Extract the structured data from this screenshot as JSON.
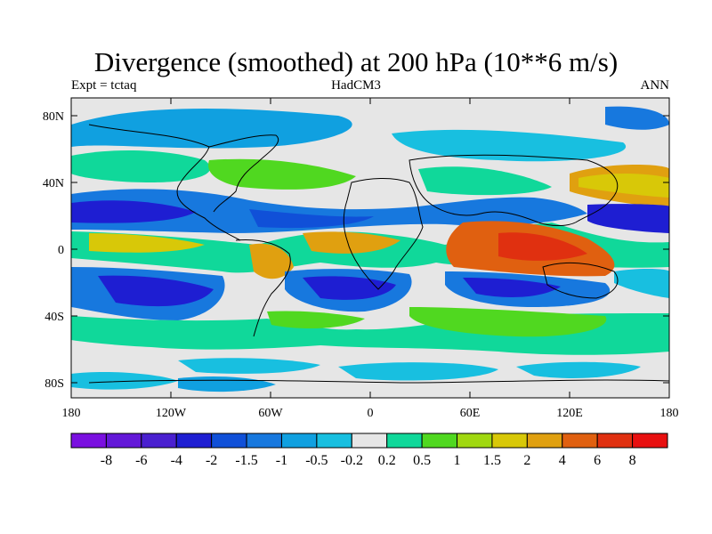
{
  "title": "Divergence (smoothed) at 200 hPa (10**6 m/s)",
  "left_label": "Expt = tctaq",
  "center_label": "HadCM3",
  "right_label": "ANN",
  "map": {
    "lat_ticks": [
      "80N",
      "40N",
      "0",
      "40S",
      "80S"
    ],
    "lon_ticks": [
      "180",
      "120W",
      "60W",
      "0",
      "60E",
      "120E",
      "180"
    ]
  },
  "colorbar": {
    "labels": [
      "-8",
      "-6",
      "-4",
      "-2",
      "-1.5",
      "-1",
      "-0.5",
      "-0.2",
      "0.2",
      "0.5",
      "1",
      "1.5",
      "2",
      "4",
      "6",
      "8"
    ],
    "colors": [
      "#7a10e0",
      "#6318d8",
      "#4a20d0",
      "#1e1ed2",
      "#1050d8",
      "#1778de",
      "#10a0e0",
      "#18bfe0",
      "#e6e6e6",
      "#10d89a",
      "#50d820",
      "#a0d810",
      "#d8c808",
      "#e0a010",
      "#e06010",
      "#e03010",
      "#e81010"
    ]
  },
  "colors": {
    "land_none": "#e6e6e6",
    "coast": "#000000"
  }
}
